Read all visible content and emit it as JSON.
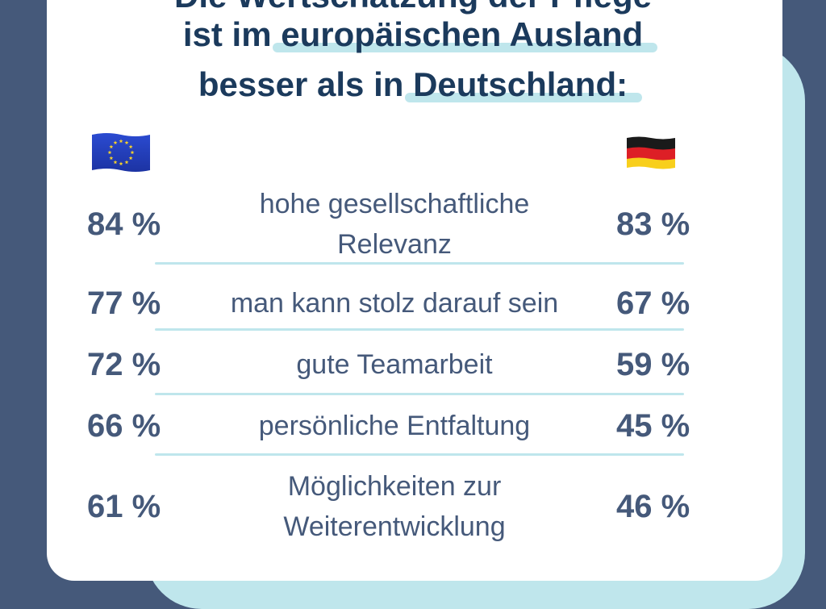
{
  "title": {
    "line1": "Die Wertschätzung der Pflege",
    "line2_prefix": "ist im ",
    "line2_highlight": "europäischen Ausland",
    "line3_prefix": "besser als in ",
    "line3_highlight": "Deutschland:"
  },
  "legend": {
    "left_icon": "eu-flag-icon",
    "right_icon": "germany-flag-icon"
  },
  "colors": {
    "background": "#45597a",
    "card": "#ffffff",
    "accent": "#bfe6ec",
    "title": "#1b3a5c",
    "text": "#45597a"
  },
  "chart_data": {
    "type": "table",
    "categories": [
      [
        "hohe gesellschaftliche",
        "Relevanz"
      ],
      [
        "man kann stolz darauf sein"
      ],
      [
        "gute Teamarbeit"
      ],
      [
        "persönliche Entfaltung"
      ],
      [
        "Möglichkeiten zur",
        "Weiterentwicklung"
      ]
    ],
    "series": [
      {
        "icon": "eu-flag-icon",
        "values": [
          84,
          77,
          72,
          66,
          61
        ],
        "labels": [
          "84 %",
          "77 %",
          "72 %",
          "66 %",
          "61 %"
        ]
      },
      {
        "icon": "germany-flag-icon",
        "values": [
          83,
          67,
          59,
          45,
          46
        ],
        "labels": [
          "83 %",
          "67 %",
          "59 %",
          "45 %",
          "46 %"
        ]
      }
    ]
  }
}
